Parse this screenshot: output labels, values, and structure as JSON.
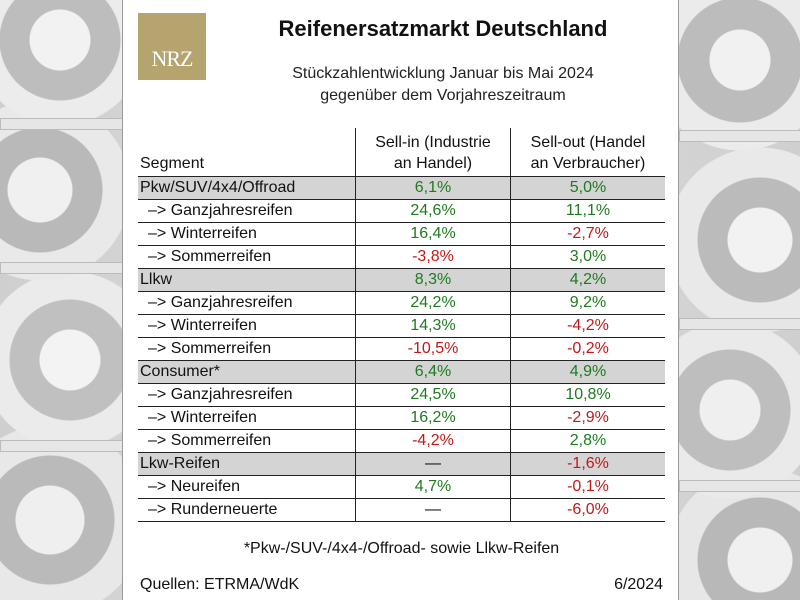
{
  "logo_text": "NRZ",
  "title": "Reifenersatzmarkt Deutschland",
  "subtitle_line1": "Stückzahlentwicklung Januar bis Mai 2024",
  "subtitle_line2": "gegenüber dem Vorjahreszeitraum",
  "headers": {
    "segment": "Segment",
    "sell_in_line1": "Sell-in (Industrie",
    "sell_in_line2": "an Handel)",
    "sell_out_line1": "Sell-out (Handel",
    "sell_out_line2": "an Verbraucher)"
  },
  "rows": [
    {
      "label": "Pkw/SUV/4x4/Offroad",
      "sell_in": "6,1%",
      "sell_out": "5,0%",
      "group": true
    },
    {
      "label": "–> Ganzjahresreifen",
      "sell_in": "24,6%",
      "sell_out": "11,1%",
      "group": false
    },
    {
      "label": "–> Winterreifen",
      "sell_in": "16,4%",
      "sell_out": "-2,7%",
      "group": false
    },
    {
      "label": "–> Sommerreifen",
      "sell_in": "-3,8%",
      "sell_out": "3,0%",
      "group": false
    },
    {
      "label": "Llkw",
      "sell_in": "8,3%",
      "sell_out": "4,2%",
      "group": true
    },
    {
      "label": "–> Ganzjahresreifen",
      "sell_in": "24,2%",
      "sell_out": "9,2%",
      "group": false
    },
    {
      "label": "–> Winterreifen",
      "sell_in": "14,3%",
      "sell_out": "-4,2%",
      "group": false
    },
    {
      "label": "–> Sommerreifen",
      "sell_in": "-10,5%",
      "sell_out": "-0,2%",
      "group": false
    },
    {
      "label": "Consumer*",
      "sell_in": "6,4%",
      "sell_out": "4,9%",
      "group": true
    },
    {
      "label": "–> Ganzjahresreifen",
      "sell_in": "24,5%",
      "sell_out": "10,8%",
      "group": false
    },
    {
      "label": "–> Winterreifen",
      "sell_in": "16,2%",
      "sell_out": "-2,9%",
      "group": false
    },
    {
      "label": "–> Sommerreifen",
      "sell_in": "-4,2%",
      "sell_out": "2,8%",
      "group": false
    },
    {
      "label": "Lkw-Reifen",
      "sell_in": "—",
      "sell_out": "-1,6%",
      "group": true
    },
    {
      "label": "–> Neureifen",
      "sell_in": "4,7%",
      "sell_out": "-0,1%",
      "group": false
    },
    {
      "label": "–> Runderneuerte",
      "sell_in": "—",
      "sell_out": "-6,0%",
      "group": false
    }
  ],
  "footnote": "*Pkw-/SUV-/4x4-/Offroad- sowie Llkw-Reifen",
  "source": "Quellen: ETRMA/WdK",
  "date": "6/2024",
  "colors": {
    "positive": "#1e7b1e",
    "negative": "#c21818",
    "group_row": "#d4d4d4",
    "logo_bg": "#b5a46e"
  }
}
